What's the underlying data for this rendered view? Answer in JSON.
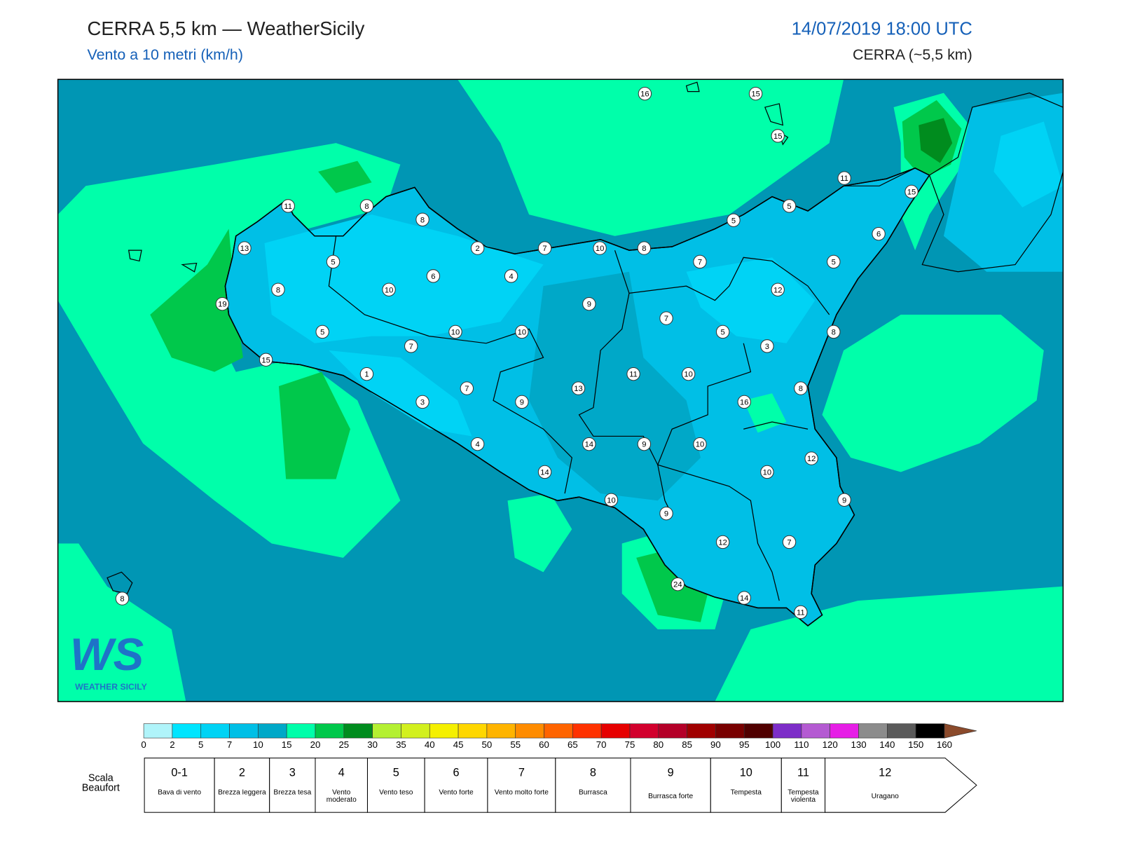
{
  "header": {
    "title": "CERRA 5,5 km — WeatherSicily",
    "subtitle": "Vento a 10 metri (km/h)",
    "datetime": "14/07/2019 18:00 UTC",
    "model": "CERRA (~5,5 km)"
  },
  "stations": [
    16,
    15,
    15,
    11,
    15,
    5,
    5,
    6,
    11,
    8,
    8,
    13,
    2,
    7,
    10,
    8,
    7,
    5,
    5,
    6,
    4,
    8,
    10,
    12,
    19,
    9,
    7,
    5,
    10,
    10,
    5,
    8,
    7,
    3,
    15,
    1,
    11,
    10,
    7,
    13,
    8,
    3,
    9,
    16,
    4,
    14,
    9,
    10,
    12,
    14,
    10,
    10,
    9,
    9,
    12,
    7,
    24,
    14,
    11,
    8
  ],
  "logo": {
    "mark": "WS",
    "text": "WEATHER SICILY"
  },
  "colorbar": {
    "ticks": [
      0,
      2,
      5,
      7,
      10,
      15,
      20,
      25,
      30,
      35,
      40,
      45,
      50,
      55,
      60,
      65,
      70,
      75,
      80,
      85,
      90,
      95,
      100,
      110,
      120,
      130,
      140,
      150,
      160
    ],
    "colors": [
      "#b0f4fa",
      "#00e5ff",
      "#00d3f5",
      "#00bfe6",
      "#00a8c8",
      "#00ffaa",
      "#00c84b",
      "#008c1e",
      "#b4f032",
      "#d2f01e",
      "#f5f000",
      "#ffd700",
      "#ffb400",
      "#ff8c00",
      "#ff6400",
      "#ff3200",
      "#e60000",
      "#d2002d",
      "#b40028",
      "#a00000",
      "#780000",
      "#500000",
      "#7d2dc8",
      "#b45ad2",
      "#e61ee6",
      "#8c8c8c",
      "#5a5a5a",
      "#000000",
      "#8b4a2b",
      "#c8864b"
    ]
  },
  "beaufort": {
    "label": "Scala Beaufort",
    "levels": [
      {
        "force": "0-1",
        "name": "Bava di vento"
      },
      {
        "force": 2,
        "name": "Brezza leggera"
      },
      {
        "force": 3,
        "name": "Brezza tesa"
      },
      {
        "force": 4,
        "name": "Vento moderato"
      },
      {
        "force": 5,
        "name": "Vento teso"
      },
      {
        "force": 6,
        "name": "Vento forte"
      },
      {
        "force": 7,
        "name": "Vento molto forte"
      },
      {
        "force": 8,
        "name": "Burrasca"
      },
      {
        "force": 9,
        "name": "Burrasca forte"
      },
      {
        "force": 10,
        "name": "Tempesta"
      },
      {
        "force": 11,
        "name": "Tempesta violenta"
      },
      {
        "force": 12,
        "name": "Uragano"
      }
    ]
  }
}
